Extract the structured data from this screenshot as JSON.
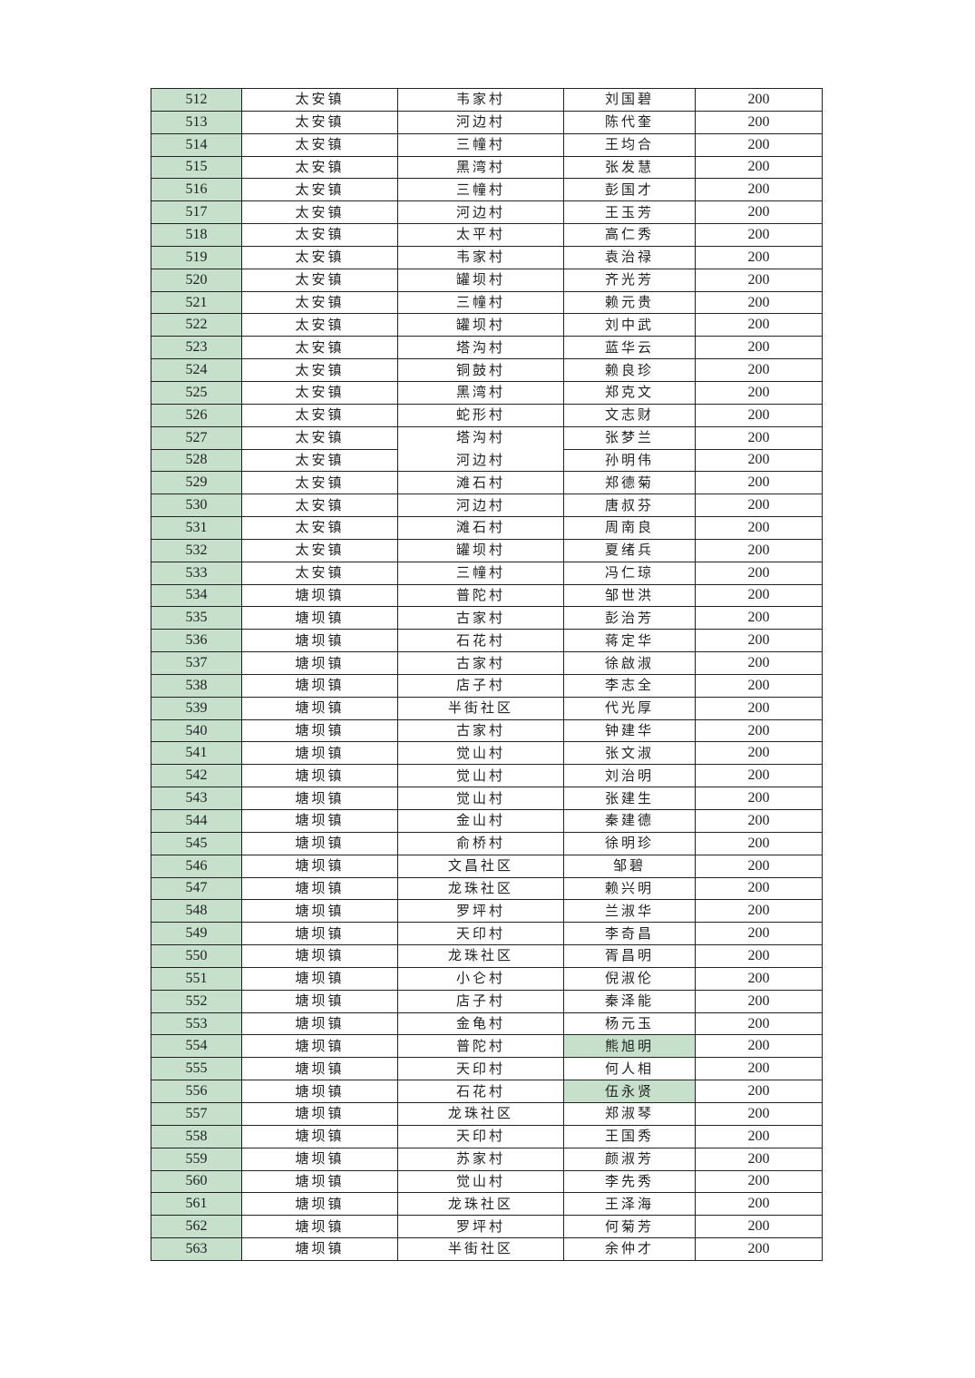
{
  "colors": {
    "index_fill": "#c6e0cc",
    "highlight_fill": "#c6e0cc"
  },
  "rows": [
    [
      "512",
      "太安镇",
      "韦家村",
      "刘国碧",
      "200"
    ],
    [
      "513",
      "太安镇",
      "河边村",
      "陈代奎",
      "200"
    ],
    [
      "514",
      "太安镇",
      "三幢村",
      "王均合",
      "200"
    ],
    [
      "515",
      "太安镇",
      "黑湾村",
      "张发慧",
      "200"
    ],
    [
      "516",
      "太安镇",
      "三幢村",
      "彭国才",
      "200"
    ],
    [
      "517",
      "太安镇",
      "河边村",
      "王玉芳",
      "200"
    ],
    [
      "518",
      "太安镇",
      "太平村",
      "高仁秀",
      "200"
    ],
    [
      "519",
      "太安镇",
      "韦家村",
      "袁治禄",
      "200"
    ],
    [
      "520",
      "太安镇",
      "罐坝村",
      "齐光芳",
      "200"
    ],
    [
      "521",
      "太安镇",
      "三幢村",
      "赖元贵",
      "200"
    ],
    [
      "522",
      "太安镇",
      "罐坝村",
      "刘中武",
      "200"
    ],
    [
      "523",
      "太安镇",
      "塔沟村",
      "蓝华云",
      "200"
    ],
    [
      "524",
      "太安镇",
      "铜鼓村",
      "赖良珍",
      "200"
    ],
    [
      "525",
      "太安镇",
      "黑湾村",
      "郑克文",
      "200"
    ],
    [
      "526",
      "太安镇",
      "蛇形村",
      "文志财",
      "200"
    ],
    [
      "527",
      "太安镇",
      "塔沟村",
      "张梦兰",
      "200"
    ],
    [
      "528",
      "太安镇",
      "河边村",
      "孙明伟",
      "200"
    ],
    [
      "529",
      "太安镇",
      "滩石村",
      "郑德菊",
      "200"
    ],
    [
      "530",
      "太安镇",
      "河边村",
      "唐叔芬",
      "200"
    ],
    [
      "531",
      "太安镇",
      "滩石村",
      "周南良",
      "200"
    ],
    [
      "532",
      "太安镇",
      "罐坝村",
      "夏绪兵",
      "200"
    ],
    [
      "533",
      "太安镇",
      "三幢村",
      "冯仁琼",
      "200"
    ],
    [
      "534",
      "塘坝镇",
      "普陀村",
      "邹世洪",
      "200"
    ],
    [
      "535",
      "塘坝镇",
      "古家村",
      "彭治芳",
      "200"
    ],
    [
      "536",
      "塘坝镇",
      "石花村",
      "蒋定华",
      "200"
    ],
    [
      "537",
      "塘坝镇",
      "古家村",
      "徐啟淑",
      "200"
    ],
    [
      "538",
      "塘坝镇",
      "店子村",
      "李志全",
      "200"
    ],
    [
      "539",
      "塘坝镇",
      "半街社区",
      "代光厚",
      "200"
    ],
    [
      "540",
      "塘坝镇",
      "古家村",
      "钟建华",
      "200"
    ],
    [
      "541",
      "塘坝镇",
      "觉山村",
      "张文淑",
      "200"
    ],
    [
      "542",
      "塘坝镇",
      "觉山村",
      "刘治明",
      "200"
    ],
    [
      "543",
      "塘坝镇",
      "觉山村",
      "张建生",
      "200"
    ],
    [
      "544",
      "塘坝镇",
      "金山村",
      "秦建德",
      "200"
    ],
    [
      "545",
      "塘坝镇",
      "俞桥村",
      "徐明珍",
      "200"
    ],
    [
      "546",
      "塘坝镇",
      "文昌社区",
      "邹碧",
      "200"
    ],
    [
      "547",
      "塘坝镇",
      "龙珠社区",
      "赖兴明",
      "200"
    ],
    [
      "548",
      "塘坝镇",
      "罗坪村",
      "兰淑华",
      "200"
    ],
    [
      "549",
      "塘坝镇",
      "天印村",
      "李奇昌",
      "200"
    ],
    [
      "550",
      "塘坝镇",
      "龙珠社区",
      "胥昌明",
      "200"
    ],
    [
      "551",
      "塘坝镇",
      "小仑村",
      "倪淑伦",
      "200"
    ],
    [
      "552",
      "塘坝镇",
      "店子村",
      "秦泽能",
      "200"
    ],
    [
      "553",
      "塘坝镇",
      "金龟村",
      "杨元玉",
      "200"
    ],
    [
      "554",
      "塘坝镇",
      "普陀村",
      "熊旭明",
      "200"
    ],
    [
      "555",
      "塘坝镇",
      "天印村",
      "何人相",
      "200"
    ],
    [
      "556",
      "塘坝镇",
      "石花村",
      "伍永贤",
      "200"
    ],
    [
      "557",
      "塘坝镇",
      "龙珠社区",
      "郑淑琴",
      "200"
    ],
    [
      "558",
      "塘坝镇",
      "天印村",
      "王国秀",
      "200"
    ],
    [
      "559",
      "塘坝镇",
      "苏家村",
      "颜淑芳",
      "200"
    ],
    [
      "560",
      "塘坝镇",
      "觉山村",
      "李先秀",
      "200"
    ],
    [
      "561",
      "塘坝镇",
      "龙珠社区",
      "王泽海",
      "200"
    ],
    [
      "562",
      "塘坝镇",
      "罗坪村",
      "何菊芳",
      "200"
    ],
    [
      "563",
      "塘坝镇",
      "半街社区",
      "余仲才",
      "200"
    ]
  ],
  "highlighted_names": [
    "554",
    "556"
  ]
}
